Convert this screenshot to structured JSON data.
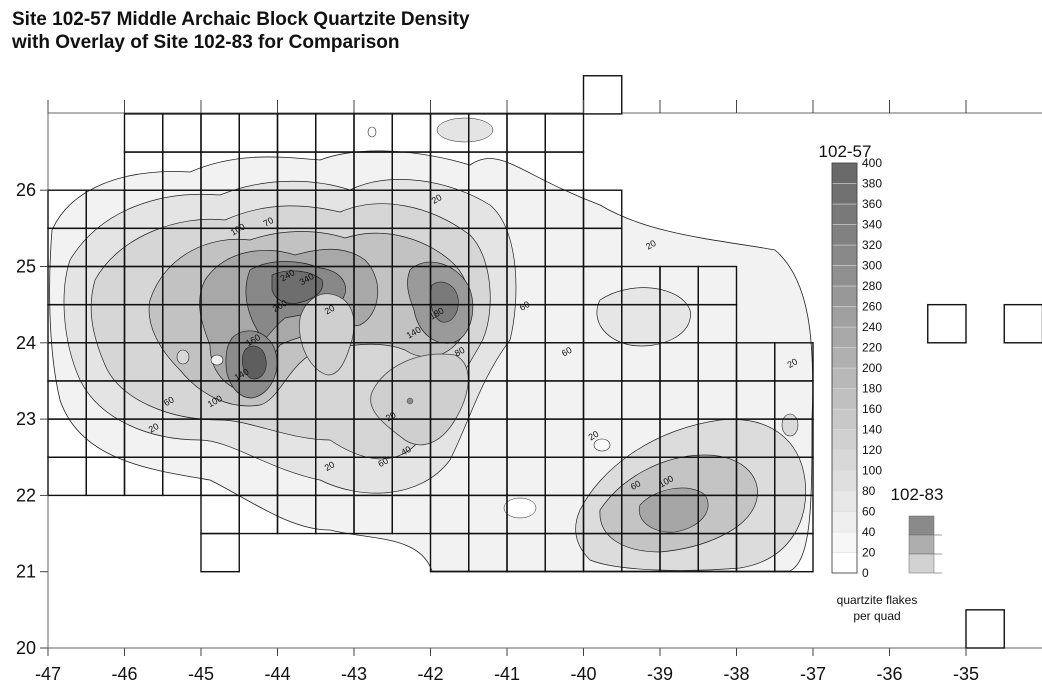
{
  "title": {
    "line1": "Site 102-57 Middle Archaic Block Quartzite Density",
    "line2": "with Overlay of Site 102-83 for Comparison"
  },
  "chart_data": {
    "type": "contour map",
    "x_ticks": [
      -47,
      -46,
      -45,
      -44,
      -43,
      -42,
      -41,
      -40,
      -39,
      -38,
      -37,
      -36,
      -35
    ],
    "y_ticks": [
      20,
      21,
      22,
      23,
      24,
      25,
      26
    ],
    "xlim": [
      -47,
      -34
    ],
    "ylim": [
      20,
      27
    ],
    "legend_main": {
      "title": "102-57",
      "levels": [
        0,
        20,
        40,
        60,
        80,
        100,
        120,
        140,
        160,
        180,
        200,
        220,
        240,
        260,
        280,
        300,
        320,
        340,
        360,
        380,
        400
      ]
    },
    "legend_overlay": {
      "title": "102-83",
      "shades": [
        "#8a8a8a",
        "#aeaeae",
        "#d2d2d2"
      ]
    },
    "unit_note": [
      "quartzite flakes",
      "per quad"
    ],
    "contour_labels": [
      {
        "text": "20",
        "x": -43.3,
        "y": 24.4
      },
      {
        "text": "20",
        "x": -42.5,
        "y": 23.0
      },
      {
        "text": "20",
        "x": -41.9,
        "y": 25.85
      },
      {
        "text": "20",
        "x": -39.1,
        "y": 25.25
      },
      {
        "text": "20",
        "x": -37.25,
        "y": 23.7
      },
      {
        "text": "20",
        "x": -39.85,
        "y": 22.75
      },
      {
        "text": "20",
        "x": -45.6,
        "y": 22.85
      },
      {
        "text": "20",
        "x": -43.3,
        "y": 22.35
      },
      {
        "text": "60",
        "x": -45.4,
        "y": 23.2
      },
      {
        "text": "60",
        "x": -40.75,
        "y": 24.45
      },
      {
        "text": "60",
        "x": -40.2,
        "y": 23.85
      },
      {
        "text": "60",
        "x": -42.6,
        "y": 22.4
      },
      {
        "text": "60",
        "x": -39.3,
        "y": 22.1
      },
      {
        "text": "80",
        "x": -41.6,
        "y": 23.85
      },
      {
        "text": "100",
        "x": -44.5,
        "y": 25.45
      },
      {
        "text": "100",
        "x": -44.8,
        "y": 23.2
      },
      {
        "text": "100",
        "x": -38.9,
        "y": 22.15
      },
      {
        "text": "140",
        "x": -42.2,
        "y": 24.1
      },
      {
        "text": "140",
        "x": -44.45,
        "y": 23.55
      },
      {
        "text": "160",
        "x": -44.3,
        "y": 24.0
      },
      {
        "text": "180",
        "x": -41.9,
        "y": 24.35
      },
      {
        "text": "240",
        "x": -43.85,
        "y": 24.85
      },
      {
        "text": "260",
        "x": -43.95,
        "y": 24.45
      },
      {
        "text": "340",
        "x": -43.6,
        "y": 24.8
      },
      {
        "text": "70",
        "x": -44.1,
        "y": 25.55
      },
      {
        "text": "40",
        "x": -42.3,
        "y": 22.55
      }
    ]
  }
}
